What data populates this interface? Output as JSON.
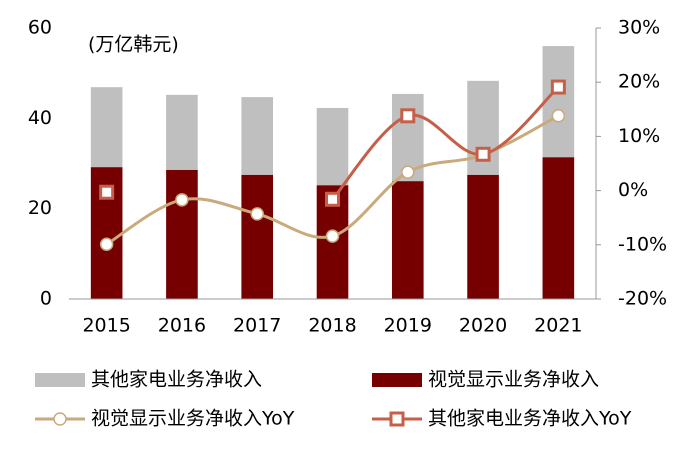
{
  "chart_data": {
    "type": "bar",
    "stacked": true,
    "annotation": "(万亿韩元)",
    "categories": [
      "2015",
      "2016",
      "2017",
      "2018",
      "2019",
      "2020",
      "2021"
    ],
    "series": [
      {
        "name": "视觉显示业务净收入",
        "type": "bar",
        "color": "#760000",
        "values": [
          29.2,
          28.6,
          27.5,
          25.2,
          26.1,
          27.5,
          31.4
        ]
      },
      {
        "name": "其他家电业务净收入",
        "type": "bar",
        "color": "#bfbfbf",
        "values": [
          17.7,
          16.6,
          17.2,
          17.1,
          19.3,
          20.8,
          24.6
        ]
      },
      {
        "name": "视觉显示业务净收入YoY",
        "type": "line",
        "axis": "y2",
        "color": "#c9aa7c",
        "marker": "circle",
        "values": [
          -9.9,
          -1.7,
          -4.3,
          -8.4,
          3.4,
          6.6,
          13.8
        ]
      },
      {
        "name": "其他家电业务净收入YoY",
        "type": "line",
        "axis": "y2",
        "color": "#c65f48",
        "marker": "square",
        "values": [
          -0.3,
          null,
          null,
          -1.6,
          13.8,
          6.7,
          19.1
        ]
      }
    ],
    "ylim": [
      0,
      60
    ],
    "yticks": [
      0,
      20,
      40,
      60
    ],
    "y2lim": [
      -20,
      30
    ],
    "y2ticks": [
      {
        "value": -20,
        "label": "-20%"
      },
      {
        "value": -10,
        "label": "-10%"
      },
      {
        "value": 0,
        "label": "0%"
      },
      {
        "value": 10,
        "label": "10%"
      },
      {
        "value": 20,
        "label": "20%"
      },
      {
        "value": 30,
        "label": "30%"
      }
    ],
    "grid": false
  }
}
